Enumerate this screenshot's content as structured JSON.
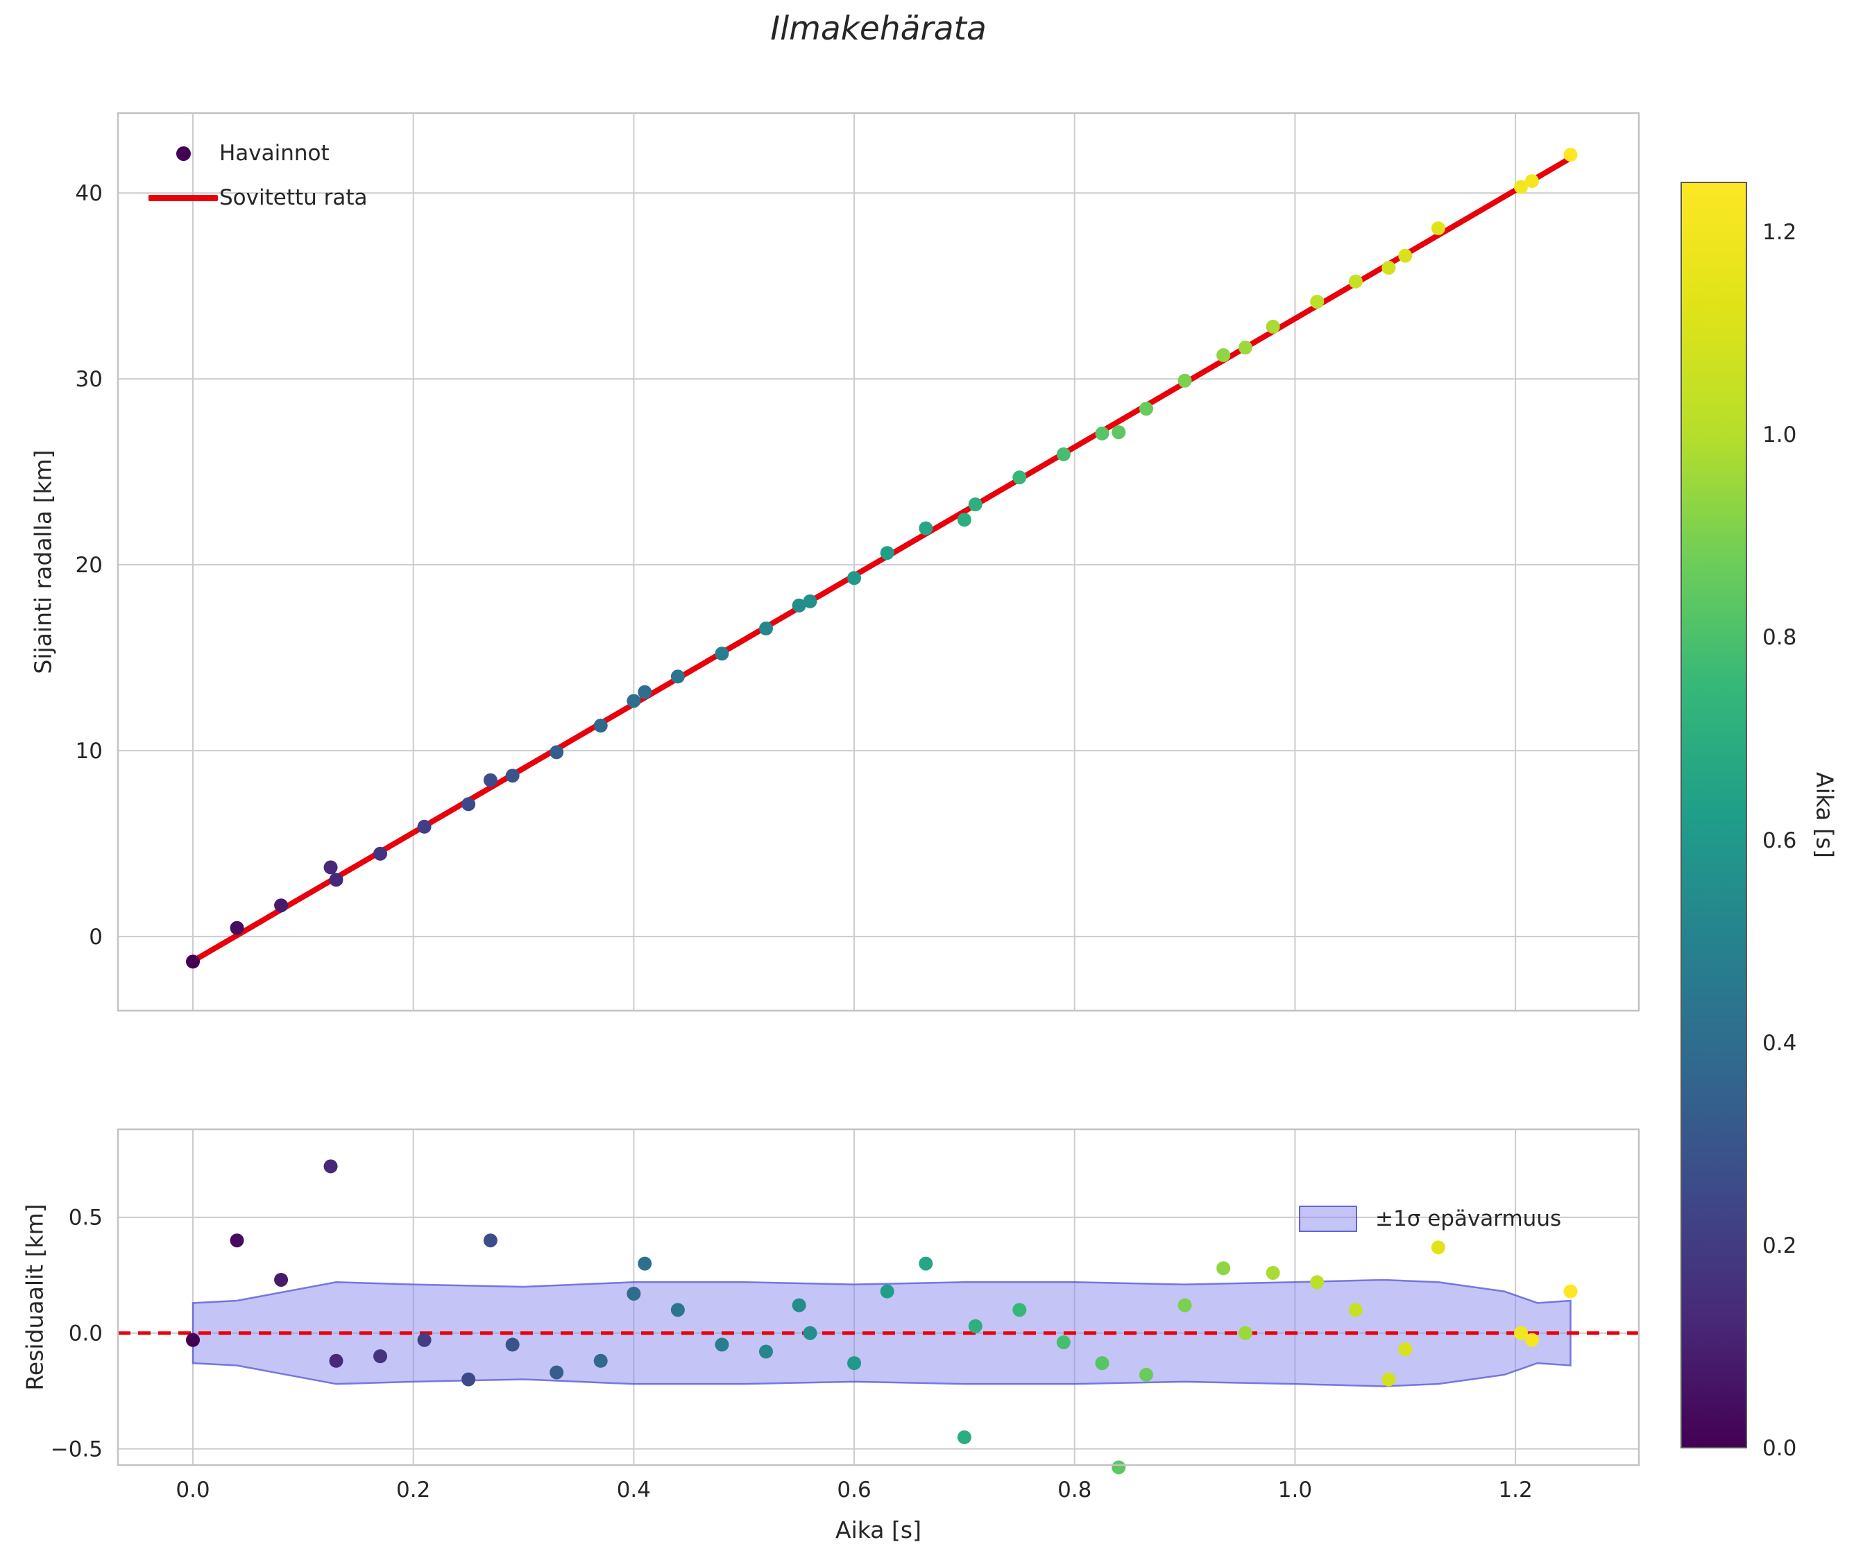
{
  "figure": {
    "title": "Ilmakehärata"
  },
  "style": {
    "accent_red": "#e8000b",
    "grid_color": "#cccccc",
    "spine_color": "#c3c3c3",
    "text_color": "#262626",
    "band_fill": "#8a8aee",
    "band_edge": "#5353d6",
    "colorbar_outline": "#585858",
    "viridis_stops": [
      [
        0,
        "#440154"
      ],
      [
        0.1,
        "#482878"
      ],
      [
        0.2,
        "#3e4989"
      ],
      [
        0.3,
        "#31688e"
      ],
      [
        0.4,
        "#26828e"
      ],
      [
        0.5,
        "#1f9e89"
      ],
      [
        0.6,
        "#35b779"
      ],
      [
        0.7,
        "#6dcd59"
      ],
      [
        0.8,
        "#b5de2b"
      ],
      [
        0.9,
        "#dfe318"
      ],
      [
        1,
        "#fde725"
      ]
    ]
  },
  "chart_data": [
    {
      "type": "scatter",
      "name": "trajectory-plot",
      "title": "Ilmakehärata",
      "xlabel": "",
      "ylabel": "Sijainti radalla [km]",
      "xlim": [
        -0.068,
        1.312
      ],
      "ylim": [
        -3.99,
        44.3
      ],
      "grid": true,
      "xticks": {
        "values": [
          0,
          0.2,
          0.4,
          0.6,
          0.8,
          1,
          1.2
        ],
        "labels": []
      },
      "yticks": {
        "values": [
          0,
          10,
          20,
          30,
          40
        ],
        "labels": [
          "0",
          "10",
          "20",
          "30",
          "40"
        ]
      },
      "legend": {
        "position": "upper-left",
        "items": [
          {
            "label": "Havainnot",
            "marker": "dot",
            "color": "#440154"
          },
          {
            "label": "Sovitettu rata",
            "marker": "line",
            "color": "#e8000b"
          }
        ]
      },
      "fit_line": {
        "slope": 34.56,
        "intercept": -1.32,
        "t_start": 0,
        "t_end": 1.25
      },
      "points": {
        "color_by": "t",
        "color_range": [
          0,
          1.25
        ],
        "t": [
          0,
          0.04,
          0.08,
          0.125,
          0.13,
          0.17,
          0.21,
          0.25,
          0.27,
          0.29,
          0.33,
          0.37,
          0.4,
          0.41,
          0.44,
          0.48,
          0.52,
          0.55,
          0.56,
          0.6,
          0.63,
          0.665,
          0.7,
          0.71,
          0.75,
          0.79,
          0.825,
          0.84,
          0.865,
          0.9,
          0.935,
          0.955,
          0.98,
          1.02,
          1.055,
          1.085,
          1.1,
          1.13,
          1.205,
          1.215,
          1.25
        ],
        "residuals": [
          -0.03,
          0.4,
          0.23,
          0.72,
          -0.12,
          -0.1,
          -0.03,
          -0.2,
          0.4,
          -0.05,
          -0.17,
          -0.12,
          0.17,
          0.3,
          0.1,
          -0.05,
          -0.08,
          0.12,
          0,
          -0.13,
          0.18,
          0.3,
          -0.45,
          0.03,
          0.1,
          -0.04,
          -0.13,
          -0.58,
          -0.18,
          0.12,
          0.28,
          0,
          0.26,
          0.22,
          0.1,
          -0.2,
          -0.07,
          0.37,
          0,
          -0.03,
          0.18
        ]
      }
    },
    {
      "type": "scatter",
      "name": "residual-plot",
      "xlabel": "Aika [s]",
      "ylabel": "Residuaalit [km]",
      "xlim": [
        -0.068,
        1.312
      ],
      "ylim": [
        -0.57,
        0.88
      ],
      "grid": true,
      "xticks": {
        "values": [
          0,
          0.2,
          0.4,
          0.6,
          0.8,
          1,
          1.2
        ],
        "labels": [
          "0.0",
          "0.2",
          "0.4",
          "0.6",
          "0.8",
          "1.0",
          "1.2"
        ]
      },
      "yticks": {
        "values": [
          -0.5,
          0,
          0.5
        ],
        "labels": [
          "−0.5",
          "0.0",
          "0.5"
        ]
      },
      "zero_line": {
        "value": 0,
        "style": "dashed"
      },
      "band": {
        "label": "±1σ epävarmuus",
        "t": [
          0,
          0.04,
          0.13,
          0.2,
          0.3,
          0.4,
          0.5,
          0.6,
          0.7,
          0.8,
          0.9,
          1,
          1.08,
          1.13,
          1.19,
          1.22,
          1.25
        ],
        "half_width": [
          0.13,
          0.14,
          0.22,
          0.21,
          0.2,
          0.22,
          0.22,
          0.21,
          0.22,
          0.22,
          0.21,
          0.22,
          0.23,
          0.22,
          0.18,
          0.13,
          0.14
        ]
      },
      "points_note": "same observations as trajectory-plot; y values are the residuals"
    }
  ],
  "colorbar": {
    "label": "Aika [s]",
    "vmin": 0,
    "vmax": 1.25,
    "ticks": {
      "values": [
        0,
        0.2,
        0.4,
        0.6,
        0.8,
        1,
        1.2
      ],
      "labels": [
        "0.0",
        "0.2",
        "0.4",
        "0.6",
        "0.8",
        "1.0",
        "1.2"
      ]
    }
  }
}
